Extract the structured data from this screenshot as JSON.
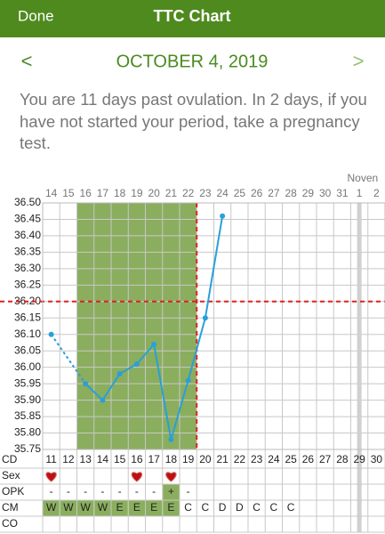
{
  "header": {
    "left_button": "Done",
    "title": "TTC Chart"
  },
  "nav": {
    "prev": "<",
    "date": "OCTOBER 4, 2019",
    "next": ">"
  },
  "message": "You are 11 days past ovulation. In 2 days, if you have not started your period, take a pregnancy test.",
  "chart_data": {
    "type": "line",
    "month_label": "Noven",
    "categories": [
      "14",
      "15",
      "16",
      "17",
      "18",
      "19",
      "20",
      "21",
      "22",
      "23",
      "24",
      "25",
      "26",
      "27",
      "28",
      "29",
      "30",
      "31",
      "1",
      "2"
    ],
    "series": [
      {
        "name": "Temperature",
        "color": "#2a9fd8",
        "values": [
          36.1,
          null,
          35.95,
          35.9,
          35.98,
          36.01,
          36.07,
          35.78,
          35.96,
          36.15,
          36.46,
          null,
          null,
          null,
          null,
          null,
          null,
          null,
          null,
          null
        ]
      }
    ],
    "ylim": [
      35.75,
      36.5
    ],
    "yticks": [
      {
        "value": 36.5,
        "label": "36.50"
      },
      36.45,
      {
        "value": 36.4,
        "label": "36.40"
      },
      36.35,
      {
        "value": 36.3,
        "label": "36.30"
      },
      36.25,
      {
        "value": 36.2,
        "label": "36.20"
      },
      36.15,
      {
        "value": 36.1,
        "label": "36.10"
      },
      36.05,
      {
        "value": 36.0,
        "label": "36.00"
      },
      35.95,
      {
        "value": 35.9,
        "label": "35.90"
      },
      35.85,
      {
        "value": 35.8,
        "label": "35.80"
      },
      35.75
    ],
    "grid": true,
    "coverline": 36.2,
    "ovulation_day": "22",
    "fertile_window": [
      "16",
      "22"
    ],
    "marker_day": "1",
    "rows": [
      {
        "label": "CD",
        "values": [
          11,
          12,
          13,
          14,
          15,
          16,
          17,
          18,
          19,
          20,
          21,
          22,
          23,
          24,
          25,
          26,
          27,
          28,
          29,
          30
        ]
      },
      {
        "label": "Sex",
        "hearts": [
          true,
          false,
          false,
          false,
          false,
          true,
          false,
          true,
          false,
          false,
          false,
          false,
          false,
          false,
          false,
          false,
          false,
          false,
          false,
          false
        ]
      },
      {
        "label": "OPK",
        "values": [
          "-",
          "-",
          "-",
          "-",
          "-",
          "-",
          "-",
          "+",
          "-",
          null,
          null,
          null,
          null,
          null,
          null,
          null,
          null,
          null,
          null,
          null
        ],
        "highlight": [
          false,
          false,
          false,
          false,
          false,
          false,
          false,
          true,
          false,
          false,
          false,
          false,
          false,
          false,
          false,
          false,
          false,
          false,
          false,
          false
        ]
      },
      {
        "label": "CM",
        "values": [
          "W",
          "W",
          "W",
          "W",
          "E",
          "E",
          "E",
          "E",
          "C",
          "C",
          "D",
          "D",
          "C",
          "C",
          "C",
          null,
          null,
          null,
          null,
          null
        ],
        "highlight": [
          true,
          true,
          true,
          true,
          true,
          true,
          true,
          true,
          false,
          false,
          false,
          false,
          false,
          false,
          false,
          false,
          false,
          false,
          false,
          false
        ]
      },
      {
        "label": "CO",
        "values": [
          null,
          null,
          null,
          null,
          null,
          null,
          null,
          null,
          null,
          null,
          null,
          null,
          null,
          null,
          null,
          null,
          null,
          null,
          null,
          null
        ]
      }
    ]
  }
}
